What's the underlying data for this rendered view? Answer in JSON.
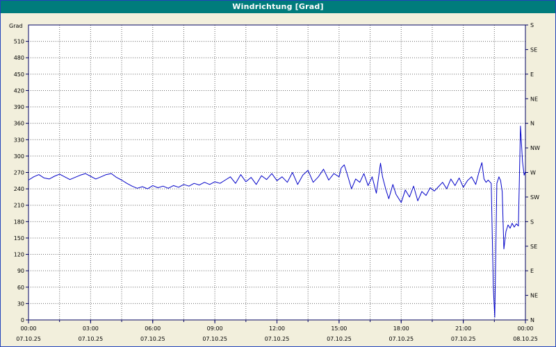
{
  "title": "Windrichtung [Grad]",
  "colors": {
    "titlebar": "#007c7c",
    "background": "#f2efdc",
    "plot_bg": "#ffffff",
    "line": "#0000c8",
    "grid": "#6a6a6a",
    "border": "#000060",
    "frame_border": "#2244bb",
    "text": "#000000"
  },
  "chart_data": {
    "type": "line",
    "title": "Windrichtung [Grad]",
    "ylabel_left": "Grad",
    "y_max": 540,
    "y_ticks": [
      0,
      30,
      60,
      90,
      120,
      150,
      180,
      210,
      240,
      270,
      300,
      330,
      360,
      390,
      420,
      450,
      480,
      510
    ],
    "right_axis_labels": [
      {
        "value": 540,
        "label": "S"
      },
      {
        "value": 495,
        "label": "SE"
      },
      {
        "value": 450,
        "label": "E"
      },
      {
        "value": 405,
        "label": "NE"
      },
      {
        "value": 360,
        "label": "N"
      },
      {
        "value": 315,
        "label": "NW"
      },
      {
        "value": 270,
        "label": "W"
      },
      {
        "value": 225,
        "label": "SW"
      },
      {
        "value": 180,
        "label": "S"
      },
      {
        "value": 135,
        "label": "SE"
      },
      {
        "value": 90,
        "label": "E"
      },
      {
        "value": 45,
        "label": "NE"
      },
      {
        "value": 0,
        "label": "N"
      }
    ],
    "x_range_hours": [
      0,
      24
    ],
    "x_minor_step": 1.5,
    "x_ticks": [
      {
        "hour": 0,
        "time": "00:00",
        "date": "07.10.25"
      },
      {
        "hour": 3,
        "time": "03:00",
        "date": "07.10.25"
      },
      {
        "hour": 6,
        "time": "06:00",
        "date": "07.10.25"
      },
      {
        "hour": 9,
        "time": "09:00",
        "date": "07.10.25"
      },
      {
        "hour": 12,
        "time": "12:00",
        "date": "07.10.25"
      },
      {
        "hour": 15,
        "time": "15:00",
        "date": "07.10.25"
      },
      {
        "hour": 18,
        "time": "18:00",
        "date": "07.10.25"
      },
      {
        "hour": 21,
        "time": "21:00",
        "date": "07.10.25"
      },
      {
        "hour": 24,
        "time": "00:00",
        "date": "08.10.25"
      }
    ],
    "series": [
      {
        "name": "Windrichtung",
        "color": "#0000c8",
        "points": [
          [
            0,
            256
          ],
          [
            0.25,
            262
          ],
          [
            0.5,
            266
          ],
          [
            0.75,
            260
          ],
          [
            1,
            258
          ],
          [
            1.25,
            263
          ],
          [
            1.5,
            267
          ],
          [
            1.75,
            262
          ],
          [
            2,
            257
          ],
          [
            2.25,
            261
          ],
          [
            2.5,
            265
          ],
          [
            2.75,
            268
          ],
          [
            3,
            263
          ],
          [
            3.25,
            258
          ],
          [
            3.5,
            262
          ],
          [
            3.75,
            266
          ],
          [
            4,
            268
          ],
          [
            4.25,
            261
          ],
          [
            4.5,
            256
          ],
          [
            4.75,
            250
          ],
          [
            5,
            245
          ],
          [
            5.25,
            241
          ],
          [
            5.5,
            244
          ],
          [
            5.75,
            240
          ],
          [
            6,
            246
          ],
          [
            6.25,
            242
          ],
          [
            6.5,
            245
          ],
          [
            6.75,
            241
          ],
          [
            7,
            246
          ],
          [
            7.25,
            243
          ],
          [
            7.5,
            248
          ],
          [
            7.75,
            245
          ],
          [
            8,
            250
          ],
          [
            8.25,
            247
          ],
          [
            8.5,
            252
          ],
          [
            8.75,
            248
          ],
          [
            9,
            253
          ],
          [
            9.25,
            250
          ],
          [
            9.5,
            256
          ],
          [
            9.75,
            262
          ],
          [
            10,
            250
          ],
          [
            10.25,
            266
          ],
          [
            10.5,
            253
          ],
          [
            10.75,
            261
          ],
          [
            11,
            248
          ],
          [
            11.25,
            264
          ],
          [
            11.5,
            257
          ],
          [
            11.75,
            268
          ],
          [
            12,
            255
          ],
          [
            12.25,
            262
          ],
          [
            12.5,
            252
          ],
          [
            12.75,
            270
          ],
          [
            13,
            248
          ],
          [
            13.25,
            265
          ],
          [
            13.5,
            274
          ],
          [
            13.75,
            252
          ],
          [
            14,
            262
          ],
          [
            14.25,
            276
          ],
          [
            14.5,
            256
          ],
          [
            14.75,
            268
          ],
          [
            15,
            262
          ],
          [
            15.1,
            278
          ],
          [
            15.25,
            284
          ],
          [
            15.4,
            266
          ],
          [
            15.6,
            240
          ],
          [
            15.8,
            258
          ],
          [
            16,
            252
          ],
          [
            16.2,
            268
          ],
          [
            16.4,
            246
          ],
          [
            16.6,
            262
          ],
          [
            16.8,
            232
          ],
          [
            17,
            287
          ],
          [
            17.1,
            262
          ],
          [
            17.25,
            240
          ],
          [
            17.4,
            222
          ],
          [
            17.6,
            248
          ],
          [
            17.75,
            230
          ],
          [
            18,
            215
          ],
          [
            18.2,
            238
          ],
          [
            18.4,
            225
          ],
          [
            18.6,
            245
          ],
          [
            18.8,
            218
          ],
          [
            19,
            235
          ],
          [
            19.2,
            228
          ],
          [
            19.4,
            242
          ],
          [
            19.6,
            236
          ],
          [
            19.8,
            244
          ],
          [
            20,
            252
          ],
          [
            20.2,
            240
          ],
          [
            20.4,
            258
          ],
          [
            20.6,
            246
          ],
          [
            20.8,
            260
          ],
          [
            21,
            243
          ],
          [
            21.2,
            255
          ],
          [
            21.4,
            262
          ],
          [
            21.6,
            248
          ],
          [
            21.75,
            270
          ],
          [
            21.9,
            288
          ],
          [
            22,
            258
          ],
          [
            22.1,
            252
          ],
          [
            22.2,
            256
          ],
          [
            22.35,
            250
          ],
          [
            22.45,
            60
          ],
          [
            22.52,
            5
          ],
          [
            22.62,
            250
          ],
          [
            22.72,
            262
          ],
          [
            22.8,
            255
          ],
          [
            22.88,
            235
          ],
          [
            22.96,
            130
          ],
          [
            23.06,
            162
          ],
          [
            23.16,
            174
          ],
          [
            23.26,
            168
          ],
          [
            23.36,
            177
          ],
          [
            23.46,
            170
          ],
          [
            23.56,
            176
          ],
          [
            23.66,
            172
          ],
          [
            23.76,
            355
          ],
          [
            23.86,
            290
          ],
          [
            23.94,
            265
          ],
          [
            24,
            272
          ]
        ]
      }
    ]
  }
}
